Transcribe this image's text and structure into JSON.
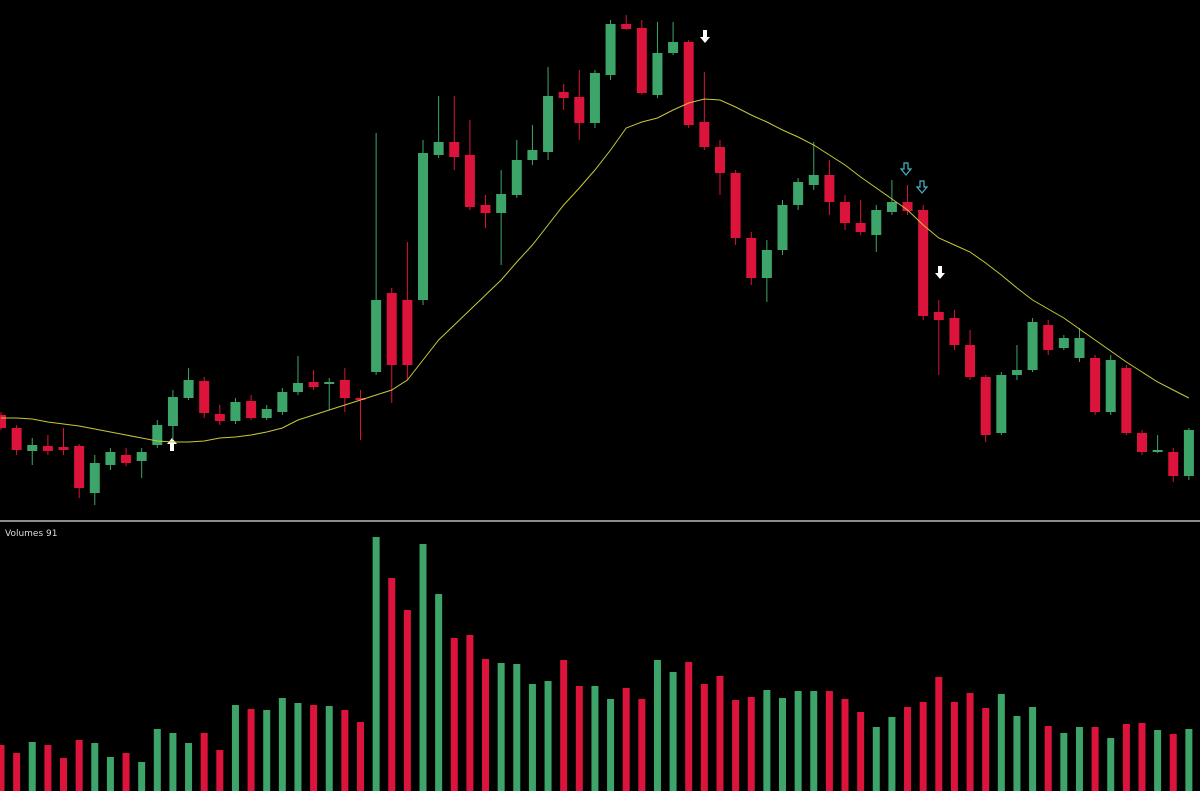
{
  "chart_data": {
    "type": "candlestick",
    "open": [
      105,
      92,
      69,
      74,
      73,
      74,
      27,
      55,
      65,
      59,
      75,
      94,
      122,
      139,
      106,
      99,
      119,
      102,
      108,
      128,
      138,
      136,
      140,
      122,
      148,
      227,
      220,
      220,
      365,
      378,
      365,
      315,
      307,
      325,
      360,
      368,
      428,
      423,
      397,
      445,
      496,
      492,
      425,
      467,
      478,
      398,
      373,
      347,
      282,
      242,
      270,
      315,
      335,
      345,
      318,
      297,
      285,
      308,
      318,
      310,
      208,
      202,
      175,
      143,
      87,
      145,
      150,
      195,
      172,
      162,
      162,
      108,
      152,
      87,
      68,
      68,
      44
    ],
    "high": [
      108,
      95,
      82,
      85,
      92,
      76,
      65,
      72,
      72,
      72,
      100,
      130,
      152,
      143,
      115,
      122,
      125,
      115,
      132,
      164,
      150,
      142,
      152,
      130,
      387,
      232,
      278,
      380,
      424,
      424,
      400,
      325,
      350,
      380,
      395,
      453,
      436,
      450,
      450,
      500,
      505,
      500,
      498,
      498,
      480,
      448,
      380,
      350,
      288,
      280,
      320,
      342,
      378,
      360,
      325,
      320,
      315,
      340,
      335,
      315,
      220,
      210,
      190,
      145,
      148,
      175,
      202,
      200,
      185,
      192,
      165,
      165,
      155,
      90,
      85,
      72,
      92
    ],
    "low": [
      90,
      65,
      55,
      65,
      65,
      22,
      15,
      50,
      54,
      42,
      72,
      80,
      120,
      102,
      95,
      96,
      100,
      100,
      105,
      125,
      130,
      110,
      108,
      80,
      145,
      117,
      140,
      215,
      362,
      350,
      310,
      292,
      255,
      322,
      355,
      360,
      410,
      380,
      392,
      440,
      490,
      425,
      422,
      465,
      392,
      370,
      325,
      275,
      235,
      218,
      265,
      310,
      330,
      305,
      290,
      285,
      268,
      305,
      305,
      200,
      145,
      170,
      140,
      78,
      85,
      140,
      148,
      165,
      170,
      158,
      105,
      105,
      85,
      65,
      67,
      38,
      40
    ],
    "close": [
      92,
      70,
      75,
      69,
      70,
      32,
      57,
      68,
      57,
      68,
      95,
      123,
      140,
      107,
      99,
      118,
      102,
      111,
      128,
      137,
      133,
      138,
      122,
      120,
      220,
      155,
      155,
      367,
      378,
      363,
      313,
      307,
      326,
      360,
      370,
      424,
      422,
      397,
      447,
      496,
      491,
      427,
      467,
      478,
      395,
      373,
      347,
      282,
      242,
      270,
      315,
      338,
      345,
      318,
      297,
      288,
      310,
      318,
      309,
      204,
      200,
      175,
      143,
      85,
      145,
      150,
      198,
      170,
      182,
      182,
      108,
      160,
      87,
      68,
      70,
      44,
      90
    ],
    "ma": [
      102,
      102,
      101,
      98,
      96,
      94,
      91,
      88,
      85,
      82,
      79,
      78,
      78,
      79,
      82,
      83,
      85,
      88,
      92,
      100,
      105,
      110,
      115,
      120,
      125,
      130,
      140,
      160,
      180,
      195,
      210,
      225,
      240,
      258,
      275,
      295,
      315,
      332,
      350,
      370,
      392,
      398,
      402,
      410,
      417,
      421,
      420,
      413,
      405,
      398,
      390,
      383,
      375,
      365,
      355,
      343,
      332,
      321,
      310,
      295,
      282,
      275,
      268,
      257,
      245,
      232,
      220,
      211,
      202,
      191,
      180,
      169,
      158,
      148,
      138,
      130,
      122
    ],
    "ylim": [
      0,
      520
    ],
    "up_color": "#3da56a",
    "down_color": "#dc143c",
    "ma_color": "#c8c83a",
    "volume": {
      "label": "Volumes 91",
      "values": [
        46,
        38,
        49,
        46,
        33,
        51,
        48,
        34,
        38,
        29,
        62,
        58,
        48,
        58,
        41,
        86,
        82,
        81,
        93,
        88,
        86,
        85,
        81,
        69,
        254,
        213,
        181,
        247,
        197,
        153,
        156,
        132,
        128,
        127,
        107,
        110,
        131,
        105,
        105,
        92,
        103,
        92,
        131,
        119,
        129,
        107,
        115,
        91,
        94,
        101,
        93,
        100,
        100,
        100,
        92,
        79,
        64,
        74,
        84,
        89,
        114,
        89,
        98,
        83,
        97,
        75,
        84,
        65,
        58,
        64,
        64,
        53,
        67,
        68,
        61,
        57,
        62
      ],
      "ylim": [
        0,
        266
      ]
    }
  }
}
